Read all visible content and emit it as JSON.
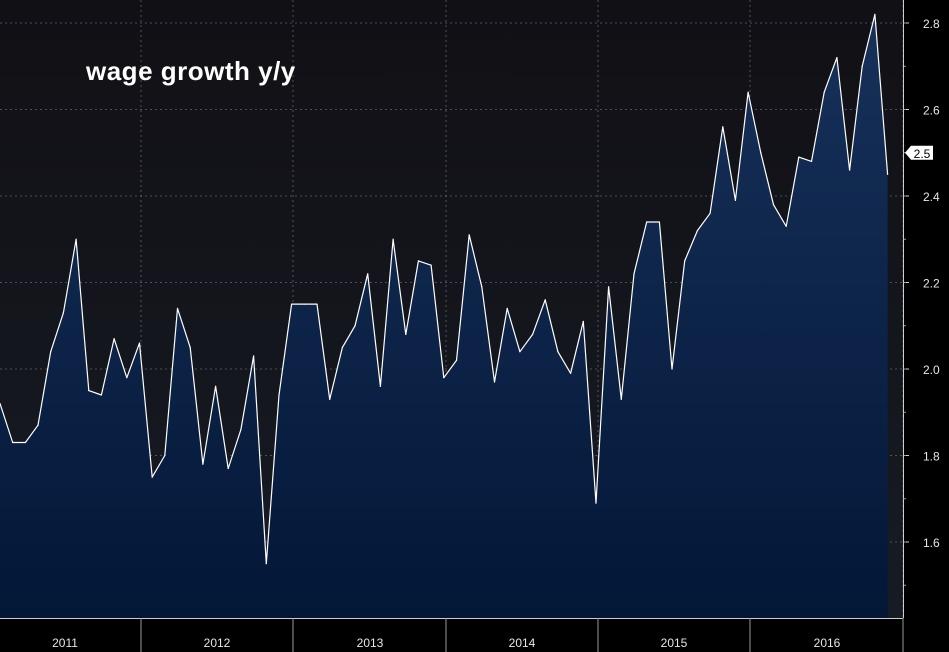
{
  "chart_data": {
    "type": "area",
    "title": "wage growth y/y",
    "xlabel": "",
    "ylabel": "",
    "x_ticks": [
      "2011",
      "2012",
      "2013",
      "2014",
      "2015",
      "2016"
    ],
    "y_ticks": [
      "1.6",
      "1.8",
      "2.0",
      "2.2",
      "2.4",
      "2.6",
      "2.8"
    ],
    "ylim": [
      1.45,
      2.85
    ],
    "last_value_label": "2.5",
    "grid": true,
    "series": [
      {
        "start": "2010-12",
        "values": [
          1.92,
          1.83,
          1.83,
          1.87,
          2.04,
          2.13,
          2.3,
          1.95,
          1.94,
          2.07,
          1.98,
          2.06,
          1.75,
          1.8,
          2.14,
          2.05,
          1.78,
          1.96,
          1.77,
          1.86,
          2.03,
          1.55,
          1.94,
          2.15,
          2.15,
          2.15,
          1.93,
          2.05,
          2.1,
          2.22,
          1.96,
          2.3,
          2.08,
          2.25,
          2.24,
          1.98,
          2.02,
          2.31,
          2.19,
          1.97,
          2.14,
          2.04,
          2.08,
          2.16,
          2.04,
          1.99,
          2.11,
          1.69,
          2.19,
          1.93,
          2.22,
          2.34,
          2.34,
          2.0,
          2.25,
          2.32,
          2.36,
          2.56,
          2.39,
          2.64,
          2.5,
          2.38,
          2.33,
          2.49,
          2.48,
          2.64,
          2.72,
          2.46,
          2.7,
          2.82,
          2.45
        ]
      }
    ],
    "colors": {
      "background_top": "#121117",
      "background_bottom": "#0f1a2e",
      "area_top": "#132a4c",
      "area_bottom": "#05193a",
      "line": "#ffffff",
      "grid": "#8a8a8a"
    }
  }
}
